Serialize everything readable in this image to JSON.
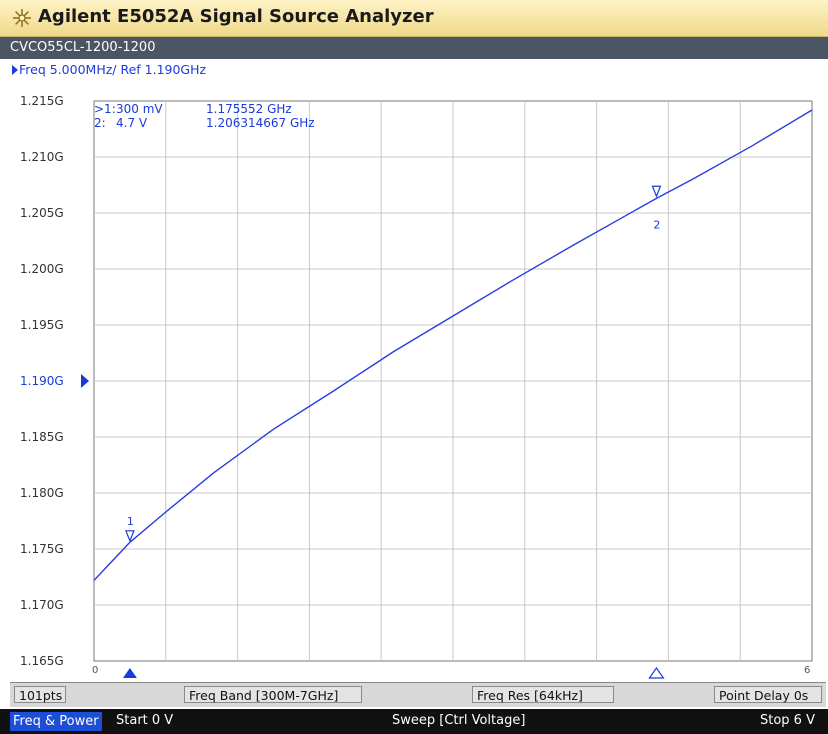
{
  "window": {
    "title": "Agilent E5052A Signal Source Analyzer"
  },
  "channel": {
    "label": "CVCO55CL-1200-1200"
  },
  "trace": {
    "label": "Freq 5.000MHz/ Ref 1.190GHz"
  },
  "markers": {
    "rows": [
      {
        "id": ">1:",
        "x": "300 mV",
        "y": "1.175552 GHz"
      },
      {
        "id": "2:",
        "x": "4.7 V",
        "y": "1.206314667 GHz"
      }
    ],
    "points": [
      {
        "label": "1",
        "x_v": 0.3,
        "y_ghz": 1.175552,
        "active": true
      },
      {
        "label": "2",
        "x_v": 4.7,
        "y_ghz": 1.206314667,
        "active": false
      }
    ]
  },
  "chart_data": {
    "type": "line",
    "title": "",
    "xlabel": "",
    "ylabel": "",
    "xlim": [
      0,
      6
    ],
    "ylim": [
      1.165,
      1.215
    ],
    "x_ticks": [
      "0",
      "6"
    ],
    "y_ticks": [
      "1.215G",
      "1.210G",
      "1.205G",
      "1.200G",
      "1.195G",
      "1.190G",
      "1.185G",
      "1.180G",
      "1.175G",
      "1.170G",
      "1.165G"
    ],
    "reference": {
      "value": 1.19,
      "label": "1.190G"
    },
    "grid": true,
    "series": [
      {
        "color": "#2a3de0",
        "x": [
          0,
          0.3,
          0.6,
          1.0,
          1.5,
          2.0,
          2.5,
          3.0,
          3.5,
          4.0,
          4.7,
          5.0,
          5.5,
          6.0
        ],
        "y": [
          1.1722,
          1.1756,
          1.1783,
          1.1818,
          1.1857,
          1.1891,
          1.1926,
          1.1958,
          1.199,
          1.2021,
          1.2063,
          1.208,
          1.211,
          1.2142
        ]
      }
    ]
  },
  "status": {
    "points": "101pts",
    "freq_band": "Freq Band [300M-7GHz]",
    "freq_res": "Freq Res [64kHz]",
    "point_delay": "Point Delay 0s"
  },
  "bottom": {
    "mode": "Freq & Power",
    "start": "Start 0 V",
    "sweep": "Sweep [Ctrl Voltage]",
    "stop": "Stop 6 V"
  }
}
